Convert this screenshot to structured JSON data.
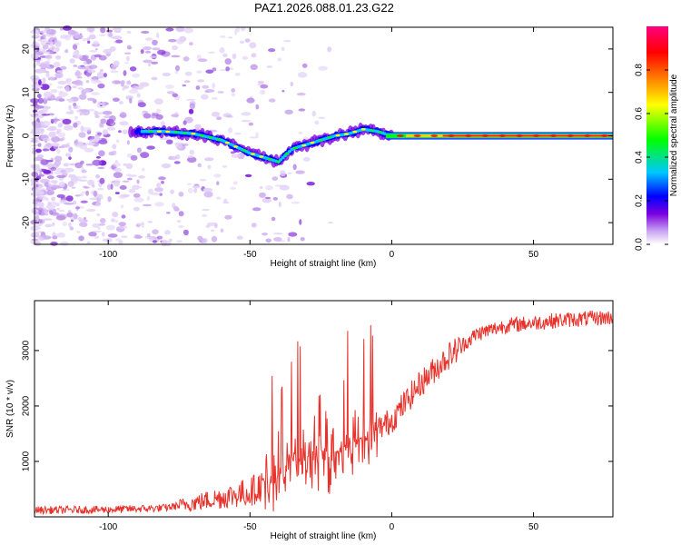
{
  "title": "PAZ1.2026.088.01.23.G22",
  "chart_data": [
    {
      "type": "heatmap",
      "name": "spectrogram",
      "xlabel": "Height of straight line (km)",
      "ylabel": "Frequency (Hz)",
      "xlim": [
        -126,
        78
      ],
      "ylim": [
        -25,
        25
      ],
      "xticks": [
        -100,
        -50,
        0,
        50
      ],
      "yticks": [
        20,
        10,
        0,
        -10,
        -20
      ],
      "colorbar": {
        "label": "Normalized spectral amplitude",
        "range": [
          0,
          1
        ],
        "ticks": [
          0.0,
          0.2,
          0.4,
          0.6,
          0.8
        ],
        "colors": [
          "#ffffff",
          "#7b00e0",
          "#0000ff",
          "#00c8ff",
          "#00ff00",
          "#ffff00",
          "#ff8000",
          "#ff0000",
          "#ff007f"
        ]
      },
      "ridge": {
        "description_points_x": [
          -90,
          -80,
          -70,
          -60,
          -50,
          -45,
          -40,
          -35,
          -30,
          -25,
          -20,
          -15,
          -10,
          -5,
          0,
          10,
          20,
          40,
          78
        ],
        "description_points_freq": [
          1,
          1,
          0.5,
          -1,
          -4,
          -5,
          -6,
          -3,
          -2,
          -1,
          0,
          0.5,
          1.5,
          1,
          0,
          0,
          0,
          0,
          0
        ]
      }
    },
    {
      "type": "line",
      "name": "snr",
      "xlabel": "Height of straight line (km)",
      "ylabel": "SNR (10 * v/v)",
      "xlim": [
        -126,
        78
      ],
      "ylim": [
        0,
        3900
      ],
      "xticks": [
        -100,
        -50,
        0,
        50
      ],
      "yticks": [
        1000,
        2000,
        3000
      ],
      "color": "#e8312a",
      "trend": {
        "x": [
          -126,
          -100,
          -80,
          -70,
          -60,
          -50,
          -45,
          -40,
          -30,
          -20,
          -10,
          0,
          10,
          20,
          30,
          40,
          50,
          60,
          78
        ],
        "y": [
          120,
          130,
          160,
          250,
          350,
          450,
          600,
          900,
          1100,
          1200,
          1400,
          1750,
          2400,
          2900,
          3300,
          3450,
          3500,
          3550,
          3600
        ]
      }
    }
  ]
}
